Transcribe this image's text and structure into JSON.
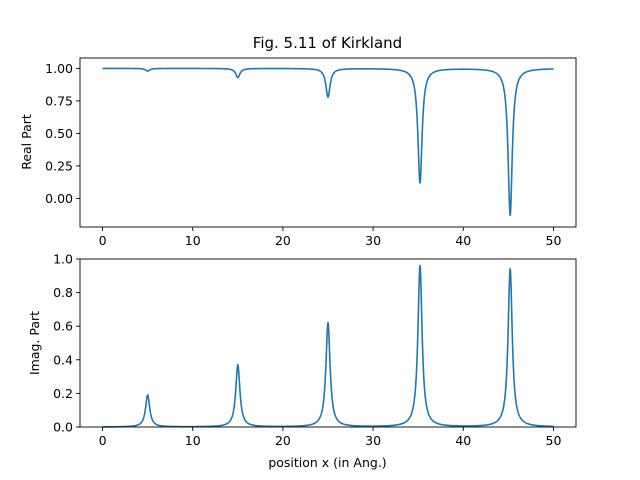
{
  "chart_data": [
    {
      "type": "line",
      "title": "Fig. 5.11 of Kirkland",
      "xlabel": "",
      "ylabel": "Real Part",
      "xlim": [
        -2.5,
        52.5
      ],
      "ylim": [
        -0.22,
        1.08
      ],
      "xticks": [
        0,
        10,
        20,
        30,
        40,
        50
      ],
      "yticks": [
        0.0,
        0.25,
        0.5,
        0.75,
        1.0
      ],
      "x_tick_labels": [
        "0",
        "10",
        "20",
        "30",
        "40",
        "50"
      ],
      "y_tick_labels": [
        "0.00",
        "0.25",
        "0.50",
        "0.75",
        "1.00"
      ],
      "grid": false,
      "series": [
        {
          "color": "#1f77b4",
          "baseline": 1.0,
          "x_range": [
            0,
            50
          ],
          "dips": [
            {
              "x": 5,
              "min": 0.98
            },
            {
              "x": 15,
              "min": 0.93
            },
            {
              "x": 25,
              "min": 0.78
            },
            {
              "x": 35.2,
              "min": 0.12
            },
            {
              "x": 45.2,
              "min": -0.13
            }
          ]
        }
      ]
    },
    {
      "type": "line",
      "title": "",
      "xlabel": "position x (in Ang.)",
      "ylabel": "Imag. Part",
      "xlim": [
        -2.5,
        52.5
      ],
      "ylim": [
        0.0,
        1.0
      ],
      "xticks": [
        0,
        10,
        20,
        30,
        40,
        50
      ],
      "yticks": [
        0.0,
        0.2,
        0.4,
        0.6,
        0.8,
        1.0
      ],
      "x_tick_labels": [
        "0",
        "10",
        "20",
        "30",
        "40",
        "50"
      ],
      "y_tick_labels": [
        "0.0",
        "0.2",
        "0.4",
        "0.6",
        "0.8",
        "1.0"
      ],
      "grid": false,
      "series": [
        {
          "color": "#1f77b4",
          "baseline": 0.0,
          "x_range": [
            0,
            50
          ],
          "peaks": [
            {
              "x": 5,
              "max": 0.19
            },
            {
              "x": 15,
              "max": 0.37
            },
            {
              "x": 25,
              "max": 0.62
            },
            {
              "x": 35.2,
              "max": 0.96
            },
            {
              "x": 45.2,
              "max": 0.94
            }
          ]
        }
      ]
    }
  ]
}
